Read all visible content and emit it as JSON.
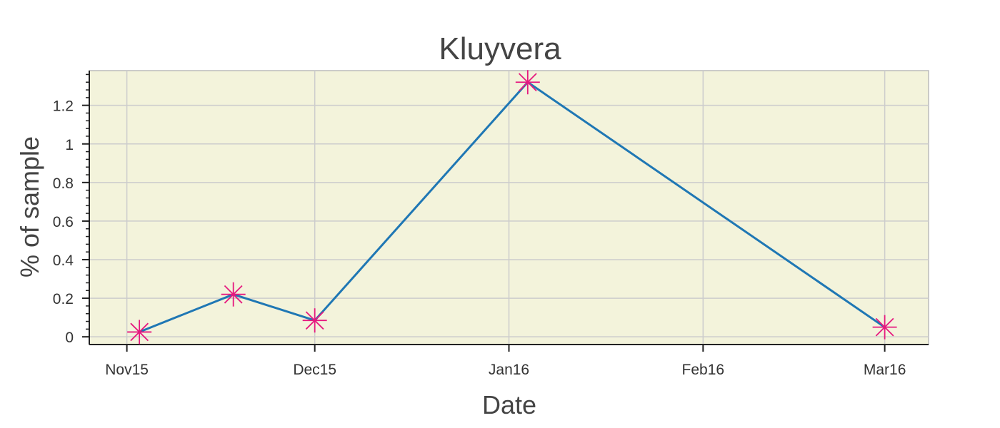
{
  "chart_data": {
    "type": "line",
    "title": "Kluyvera",
    "xlabel": "Date",
    "ylabel": "% of sample",
    "x_ticks": [
      "Nov15",
      "Dec15",
      "Jan16",
      "Feb16",
      "Mar16"
    ],
    "x_tick_dates": [
      "2015-11-01",
      "2015-12-01",
      "2016-01-01",
      "2016-02-01",
      "2016-03-01"
    ],
    "xlim": [
      "2015-10-26",
      "2016-03-08"
    ],
    "y_ticks": [
      0,
      0.2,
      0.4,
      0.6,
      0.8,
      1,
      1.2
    ],
    "ylim": [
      -0.04,
      1.38
    ],
    "grid": true,
    "series": [
      {
        "x": [
          "2015-11-03",
          "2015-11-18",
          "2015-12-01",
          "2016-01-04",
          "2016-03-01"
        ],
        "y": [
          0.025,
          0.22,
          0.085,
          1.32,
          0.05
        ]
      }
    ],
    "colors": {
      "line": "#1f77b4",
      "marker": "#e6197f",
      "plot_background": "#f3f3db",
      "grid": "#cccccc"
    },
    "marker": "asterisk"
  }
}
